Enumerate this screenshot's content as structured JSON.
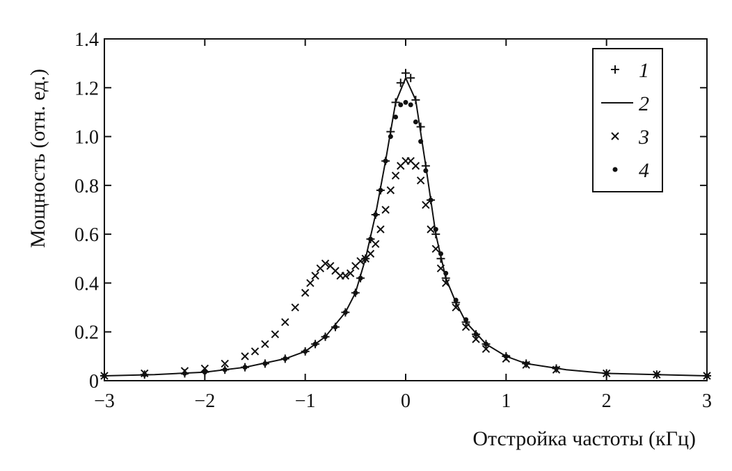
{
  "chart_data": {
    "type": "scatter",
    "title": "",
    "xlabel": "Отстройка частоты (кГц)",
    "ylabel": "Мощность (отн. ед.)",
    "xlim": [
      -3,
      3
    ],
    "ylim": [
      0,
      1.4
    ],
    "x_ticks": [
      -3,
      -2,
      -1,
      0,
      1,
      2,
      3
    ],
    "x_tick_labels": [
      "−3",
      "−2",
      "−1",
      "0",
      "1",
      "2",
      "3"
    ],
    "y_ticks": [
      0,
      0.2,
      0.4,
      0.6,
      0.8,
      1.0,
      1.2,
      1.4
    ],
    "y_tick_labels": [
      "0",
      "0.2",
      "0.4",
      "0.6",
      "0.8",
      "1.0",
      "1.2",
      "1.4"
    ],
    "grid": false,
    "legend_position": "top-right",
    "series": [
      {
        "name": "1",
        "marker": "plus",
        "x": [
          -3.0,
          -2.6,
          -2.2,
          -2.0,
          -1.8,
          -1.6,
          -1.4,
          -1.2,
          -1.0,
          -0.9,
          -0.8,
          -0.7,
          -0.6,
          -0.5,
          -0.45,
          -0.4,
          -0.35,
          -0.3,
          -0.25,
          -0.2,
          -0.15,
          -0.1,
          -0.05,
          0.0,
          0.05,
          0.1,
          0.15,
          0.2,
          0.25,
          0.3,
          0.35,
          0.4,
          0.5,
          0.6,
          0.7,
          0.8,
          1.0,
          1.2,
          1.5,
          2.0,
          2.5,
          3.0
        ],
        "y": [
          0.02,
          0.025,
          0.03,
          0.035,
          0.045,
          0.055,
          0.07,
          0.09,
          0.12,
          0.15,
          0.18,
          0.22,
          0.28,
          0.36,
          0.42,
          0.5,
          0.58,
          0.68,
          0.78,
          0.9,
          1.02,
          1.14,
          1.22,
          1.26,
          1.24,
          1.15,
          1.04,
          0.88,
          0.74,
          0.6,
          0.5,
          0.42,
          0.32,
          0.24,
          0.19,
          0.15,
          0.1,
          0.07,
          0.05,
          0.03,
          0.025,
          0.02
        ]
      },
      {
        "name": "2",
        "marker": "line",
        "x": [
          -3.0,
          -2.5,
          -2.0,
          -1.6,
          -1.2,
          -1.0,
          -0.8,
          -0.6,
          -0.5,
          -0.4,
          -0.3,
          -0.2,
          -0.1,
          0.0,
          0.1,
          0.2,
          0.3,
          0.4,
          0.5,
          0.6,
          0.8,
          1.0,
          1.2,
          1.6,
          2.0,
          2.5,
          3.0
        ],
        "y": [
          0.02,
          0.025,
          0.035,
          0.055,
          0.09,
          0.12,
          0.18,
          0.28,
          0.36,
          0.5,
          0.68,
          0.9,
          1.14,
          1.24,
          1.15,
          0.88,
          0.6,
          0.42,
          0.32,
          0.24,
          0.15,
          0.1,
          0.07,
          0.045,
          0.03,
          0.025,
          0.02
        ]
      },
      {
        "name": "3",
        "marker": "cross",
        "x": [
          -3.0,
          -2.6,
          -2.2,
          -2.0,
          -1.8,
          -1.6,
          -1.5,
          -1.4,
          -1.3,
          -1.2,
          -1.1,
          -1.0,
          -0.95,
          -0.9,
          -0.85,
          -0.8,
          -0.75,
          -0.7,
          -0.65,
          -0.6,
          -0.55,
          -0.5,
          -0.45,
          -0.4,
          -0.35,
          -0.3,
          -0.25,
          -0.2,
          -0.15,
          -0.1,
          -0.05,
          0.0,
          0.05,
          0.1,
          0.15,
          0.2,
          0.25,
          0.3,
          0.35,
          0.4,
          0.5,
          0.6,
          0.7,
          0.8,
          1.0,
          1.2,
          1.5,
          2.0,
          2.5,
          3.0
        ],
        "y": [
          0.02,
          0.03,
          0.04,
          0.05,
          0.07,
          0.1,
          0.12,
          0.15,
          0.19,
          0.24,
          0.3,
          0.36,
          0.4,
          0.43,
          0.46,
          0.48,
          0.47,
          0.45,
          0.43,
          0.43,
          0.44,
          0.47,
          0.49,
          0.5,
          0.52,
          0.56,
          0.62,
          0.7,
          0.78,
          0.84,
          0.88,
          0.9,
          0.9,
          0.88,
          0.82,
          0.72,
          0.62,
          0.54,
          0.46,
          0.4,
          0.3,
          0.22,
          0.17,
          0.13,
          0.09,
          0.065,
          0.045,
          0.03,
          0.025,
          0.02
        ]
      },
      {
        "name": "4",
        "marker": "dot",
        "x": [
          -3.0,
          -2.6,
          -2.2,
          -2.0,
          -1.8,
          -1.6,
          -1.4,
          -1.2,
          -1.0,
          -0.9,
          -0.8,
          -0.7,
          -0.6,
          -0.5,
          -0.45,
          -0.4,
          -0.35,
          -0.3,
          -0.25,
          -0.2,
          -0.15,
          -0.1,
          -0.05,
          0.0,
          0.05,
          0.1,
          0.15,
          0.2,
          0.25,
          0.3,
          0.35,
          0.4,
          0.5,
          0.6,
          0.7,
          0.8,
          1.0,
          1.2,
          1.5,
          2.0,
          2.5,
          3.0
        ],
        "y": [
          0.02,
          0.025,
          0.03,
          0.035,
          0.045,
          0.055,
          0.07,
          0.09,
          0.12,
          0.15,
          0.18,
          0.22,
          0.28,
          0.36,
          0.42,
          0.5,
          0.58,
          0.68,
          0.78,
          0.9,
          1.0,
          1.08,
          1.13,
          1.14,
          1.13,
          1.06,
          0.98,
          0.86,
          0.74,
          0.62,
          0.52,
          0.44,
          0.33,
          0.25,
          0.19,
          0.15,
          0.1,
          0.07,
          0.05,
          0.03,
          0.025,
          0.02
        ]
      }
    ]
  }
}
